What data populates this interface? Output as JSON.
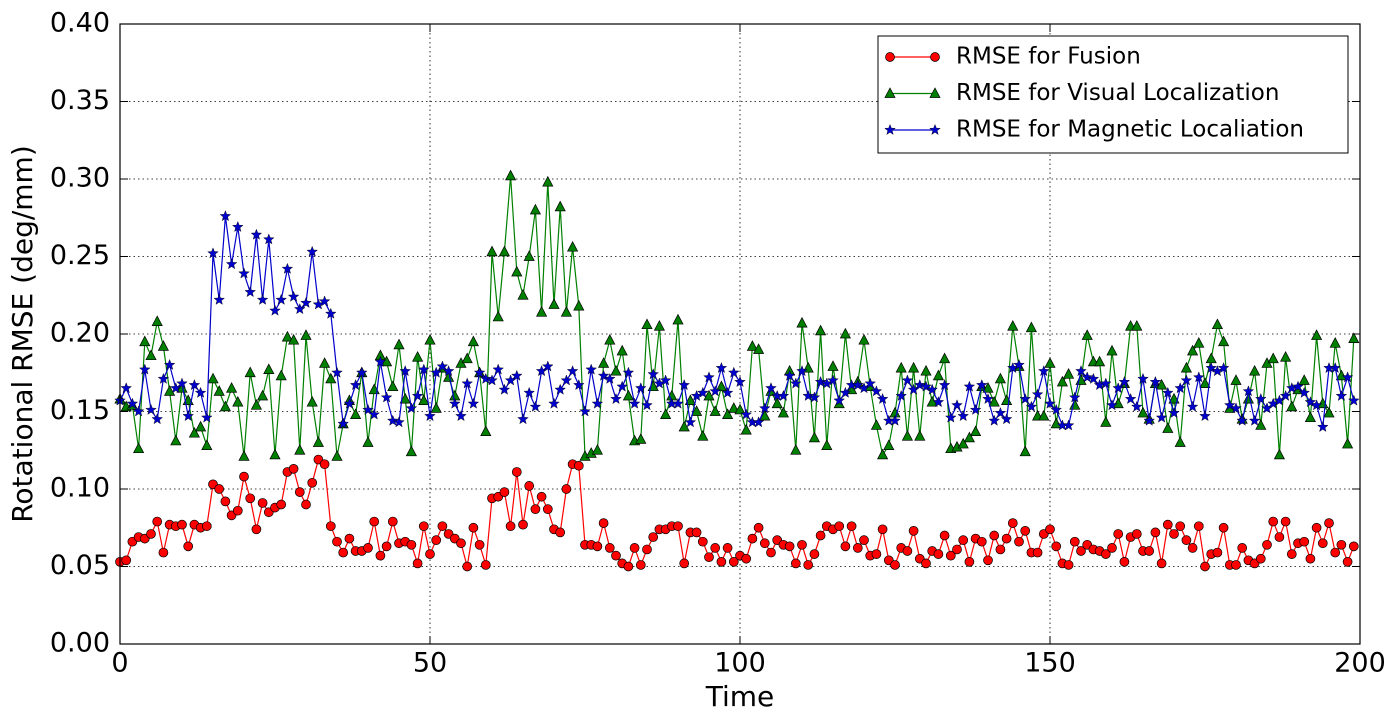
{
  "chart_data": {
    "type": "line",
    "xlabel": "Time",
    "ylabel": "Rotational RMSE (deg/mm)",
    "xlim": [
      0,
      200
    ],
    "ylim": [
      0,
      0.4
    ],
    "xticks": [
      0,
      50,
      100,
      150,
      200
    ],
    "yticks": [
      {
        "value": 0,
        "label": "0.00"
      },
      {
        "value": 0.05,
        "label": "0.05"
      },
      {
        "value": 0.1,
        "label": "0.10"
      },
      {
        "value": 0.15,
        "label": "0.15"
      },
      {
        "value": 0.2,
        "label": "0.20"
      },
      {
        "value": 0.25,
        "label": "0.25"
      },
      {
        "value": 0.3,
        "label": "0.30"
      },
      {
        "value": 0.35,
        "label": "0.35"
      },
      {
        "value": 0.4,
        "label": "0.40"
      }
    ],
    "grid": true,
    "legend": "upper right",
    "x": [
      0,
      1,
      2,
      3,
      4,
      5,
      6,
      7,
      8,
      9,
      10,
      11,
      12,
      13,
      14,
      15,
      16,
      17,
      18,
      19,
      20,
      21,
      22,
      23,
      24,
      25,
      26,
      27,
      28,
      29,
      30,
      31,
      32,
      33,
      34,
      35,
      36,
      37,
      38,
      39,
      40,
      41,
      42,
      43,
      44,
      45,
      46,
      47,
      48,
      49,
      50,
      51,
      52,
      53,
      54,
      55,
      56,
      57,
      58,
      59,
      60,
      61,
      62,
      63,
      64,
      65,
      66,
      67,
      68,
      69,
      70,
      71,
      72,
      73,
      74,
      75,
      76,
      77,
      78,
      79,
      80,
      81,
      82,
      83,
      84,
      85,
      86,
      87,
      88,
      89,
      90,
      91,
      92,
      93,
      94,
      95,
      96,
      97,
      98,
      99,
      100,
      101,
      102,
      103,
      104,
      105,
      106,
      107,
      108,
      109,
      110,
      111,
      112,
      113,
      114,
      115,
      116,
      117,
      118,
      119,
      120,
      121,
      122,
      123,
      124,
      125,
      126,
      127,
      128,
      129,
      130,
      131,
      132,
      133,
      134,
      135,
      136,
      137,
      138,
      139,
      140,
      141,
      142,
      143,
      144,
      145,
      146,
      147,
      148,
      149,
      150,
      151,
      152,
      153,
      154,
      155,
      156,
      157,
      158,
      159,
      160,
      161,
      162,
      163,
      164,
      165,
      166,
      167,
      168,
      169,
      170,
      171,
      172,
      173,
      174,
      175,
      176,
      177,
      178,
      179,
      180,
      181,
      182,
      183,
      184,
      185,
      186,
      187,
      188,
      189,
      190,
      191,
      192,
      193,
      194,
      195,
      196,
      197,
      198,
      199
    ],
    "series": [
      {
        "name": "RMSE for Fusion",
        "color": "#ff0000",
        "marker": "circle",
        "values": [
          0.053,
          0.054,
          0.066,
          0.069,
          0.068,
          0.071,
          0.079,
          0.059,
          0.077,
          0.076,
          0.077,
          0.063,
          0.077,
          0.075,
          0.076,
          0.103,
          0.1,
          0.092,
          0.083,
          0.086,
          0.108,
          0.094,
          0.074,
          0.091,
          0.085,
          0.088,
          0.09,
          0.111,
          0.113,
          0.098,
          0.09,
          0.104,
          0.119,
          0.116,
          0.076,
          0.066,
          0.059,
          0.068,
          0.06,
          0.06,
          0.062,
          0.079,
          0.057,
          0.063,
          0.079,
          0.065,
          0.066,
          0.064,
          0.052,
          0.076,
          0.058,
          0.067,
          0.076,
          0.071,
          0.068,
          0.065,
          0.05,
          0.075,
          0.064,
          0.051,
          0.094,
          0.095,
          0.098,
          0.076,
          0.111,
          0.077,
          0.102,
          0.087,
          0.095,
          0.087,
          0.074,
          0.072,
          0.1,
          0.116,
          0.115,
          0.064,
          0.064,
          0.063,
          0.078,
          0.062,
          0.057,
          0.052,
          0.05,
          0.062,
          0.051,
          0.061,
          0.069,
          0.074,
          0.074,
          0.076,
          0.076,
          0.052,
          0.072,
          0.072,
          0.066,
          0.056,
          0.062,
          0.053,
          0.062,
          0.053,
          0.057,
          0.055,
          0.068,
          0.075,
          0.065,
          0.059,
          0.067,
          0.064,
          0.063,
          0.052,
          0.064,
          0.051,
          0.058,
          0.07,
          0.076,
          0.074,
          0.076,
          0.063,
          0.076,
          0.062,
          0.067,
          0.057,
          0.058,
          0.074,
          0.054,
          0.051,
          0.062,
          0.06,
          0.073,
          0.055,
          0.052,
          0.06,
          0.058,
          0.07,
          0.057,
          0.061,
          0.067,
          0.053,
          0.068,
          0.066,
          0.054,
          0.07,
          0.061,
          0.068,
          0.078,
          0.066,
          0.073,
          0.059,
          0.059,
          0.071,
          0.074,
          0.063,
          0.052,
          0.051,
          0.066,
          0.06,
          0.064,
          0.061,
          0.06,
          0.058,
          0.062,
          0.071,
          0.053,
          0.069,
          0.071,
          0.06,
          0.06,
          0.072,
          0.052,
          0.077,
          0.071,
          0.076,
          0.067,
          0.062,
          0.076,
          0.05,
          0.058,
          0.059,
          0.075,
          0.051,
          0.051,
          0.062,
          0.054,
          0.052,
          0.055,
          0.064,
          0.079,
          0.069,
          0.079,
          0.058,
          0.065,
          0.066,
          0.055,
          0.075,
          0.065,
          0.078,
          0.059,
          0.064,
          0.053,
          0.063
        ]
      },
      {
        "name": "RMSE for Visual Localization",
        "color": "#008000",
        "marker": "triangle",
        "values": [
          0.158,
          0.153,
          0.154,
          0.126,
          0.195,
          0.186,
          0.208,
          0.192,
          0.163,
          0.131,
          0.165,
          0.157,
          0.136,
          0.14,
          0.128,
          0.171,
          0.163,
          0.153,
          0.165,
          0.156,
          0.121,
          0.175,
          0.154,
          0.16,
          0.177,
          0.122,
          0.173,
          0.198,
          0.196,
          0.125,
          0.199,
          0.156,
          0.13,
          0.181,
          0.171,
          0.121,
          0.142,
          0.157,
          0.148,
          0.175,
          0.13,
          0.164,
          0.186,
          0.182,
          0.166,
          0.193,
          0.158,
          0.124,
          0.185,
          0.157,
          0.196,
          0.152,
          0.178,
          0.172,
          0.16,
          0.181,
          0.184,
          0.195,
          0.175,
          0.137,
          0.253,
          0.211,
          0.253,
          0.302,
          0.24,
          0.225,
          0.25,
          0.28,
          0.214,
          0.298,
          0.219,
          0.282,
          0.214,
          0.256,
          0.218,
          0.121,
          0.123,
          0.125,
          0.181,
          0.196,
          0.176,
          0.189,
          0.16,
          0.131,
          0.132,
          0.206,
          0.166,
          0.205,
          0.148,
          0.16,
          0.209,
          0.14,
          0.157,
          0.15,
          0.134,
          0.16,
          0.15,
          0.166,
          0.148,
          0.152,
          0.151,
          0.138,
          0.192,
          0.19,
          0.147,
          0.163,
          0.155,
          0.149,
          0.176,
          0.125,
          0.207,
          0.178,
          0.133,
          0.202,
          0.128,
          0.179,
          0.155,
          0.2,
          0.164,
          0.169,
          0.196,
          0.166,
          0.141,
          0.122,
          0.128,
          0.149,
          0.178,
          0.134,
          0.178,
          0.134,
          0.176,
          0.156,
          0.173,
          0.184,
          0.126,
          0.127,
          0.129,
          0.133,
          0.137,
          0.166,
          0.165,
          0.156,
          0.171,
          0.157,
          0.205,
          0.179,
          0.124,
          0.204,
          0.147,
          0.147,
          0.181,
          0.142,
          0.169,
          0.174,
          0.154,
          0.17,
          0.199,
          0.182,
          0.182,
          0.143,
          0.189,
          0.155,
          0.168,
          0.205,
          0.205,
          0.149,
          0.145,
          0.168,
          0.167,
          0.139,
          0.158,
          0.13,
          0.178,
          0.189,
          0.194,
          0.168,
          0.184,
          0.206,
          0.195,
          0.152,
          0.17,
          0.145,
          0.158,
          0.176,
          0.141,
          0.181,
          0.184,
          0.122,
          0.185,
          0.153,
          0.164,
          0.17,
          0.146,
          0.199,
          0.155,
          0.149,
          0.194,
          0.173,
          0.129,
          0.197
        ]
      },
      {
        "name": "RMSE for Magnetic Localiation",
        "color": "#0000cc",
        "marker": "star",
        "values": [
          0.157,
          0.165,
          0.155,
          0.15,
          0.177,
          0.151,
          0.145,
          0.171,
          0.18,
          0.165,
          0.168,
          0.147,
          0.167,
          0.162,
          0.146,
          0.252,
          0.222,
          0.276,
          0.245,
          0.269,
          0.239,
          0.227,
          0.264,
          0.222,
          0.261,
          0.215,
          0.222,
          0.242,
          0.224,
          0.216,
          0.22,
          0.253,
          0.219,
          0.221,
          0.213,
          0.175,
          0.142,
          0.155,
          0.167,
          0.175,
          0.151,
          0.148,
          0.182,
          0.159,
          0.144,
          0.143,
          0.176,
          0.152,
          0.16,
          0.177,
          0.147,
          0.175,
          0.179,
          0.176,
          0.155,
          0.147,
          0.168,
          0.155,
          0.175,
          0.171,
          0.17,
          0.177,
          0.164,
          0.17,
          0.173,
          0.145,
          0.162,
          0.153,
          0.176,
          0.179,
          0.155,
          0.164,
          0.17,
          0.176,
          0.167,
          0.15,
          0.177,
          0.155,
          0.173,
          0.171,
          0.158,
          0.166,
          0.175,
          0.155,
          0.165,
          0.154,
          0.174,
          0.168,
          0.17,
          0.155,
          0.155,
          0.167,
          0.143,
          0.16,
          0.162,
          0.172,
          0.163,
          0.178,
          0.162,
          0.175,
          0.169,
          0.148,
          0.143,
          0.143,
          0.152,
          0.165,
          0.16,
          0.16,
          0.173,
          0.168,
          0.176,
          0.16,
          0.159,
          0.169,
          0.168,
          0.17,
          0.157,
          0.162,
          0.167,
          0.167,
          0.165,
          0.168,
          0.163,
          0.158,
          0.144,
          0.144,
          0.16,
          0.17,
          0.164,
          0.167,
          0.166,
          0.164,
          0.156,
          0.167,
          0.146,
          0.154,
          0.147,
          0.166,
          0.151,
          0.167,
          0.158,
          0.144,
          0.149,
          0.145,
          0.178,
          0.18,
          0.158,
          0.153,
          0.161,
          0.176,
          0.155,
          0.151,
          0.141,
          0.141,
          0.159,
          0.176,
          0.172,
          0.171,
          0.167,
          0.168,
          0.154,
          0.165,
          0.169,
          0.158,
          0.153,
          0.171,
          0.144,
          0.169,
          0.146,
          0.162,
          0.149,
          0.165,
          0.17,
          0.153,
          0.172,
          0.147,
          0.178,
          0.176,
          0.178,
          0.154,
          0.152,
          0.144,
          0.163,
          0.144,
          0.158,
          0.152,
          0.155,
          0.157,
          0.16,
          0.165,
          0.166,
          0.162,
          0.156,
          0.154,
          0.14,
          0.178,
          0.178,
          0.16,
          0.172,
          0.157
        ]
      }
    ]
  }
}
